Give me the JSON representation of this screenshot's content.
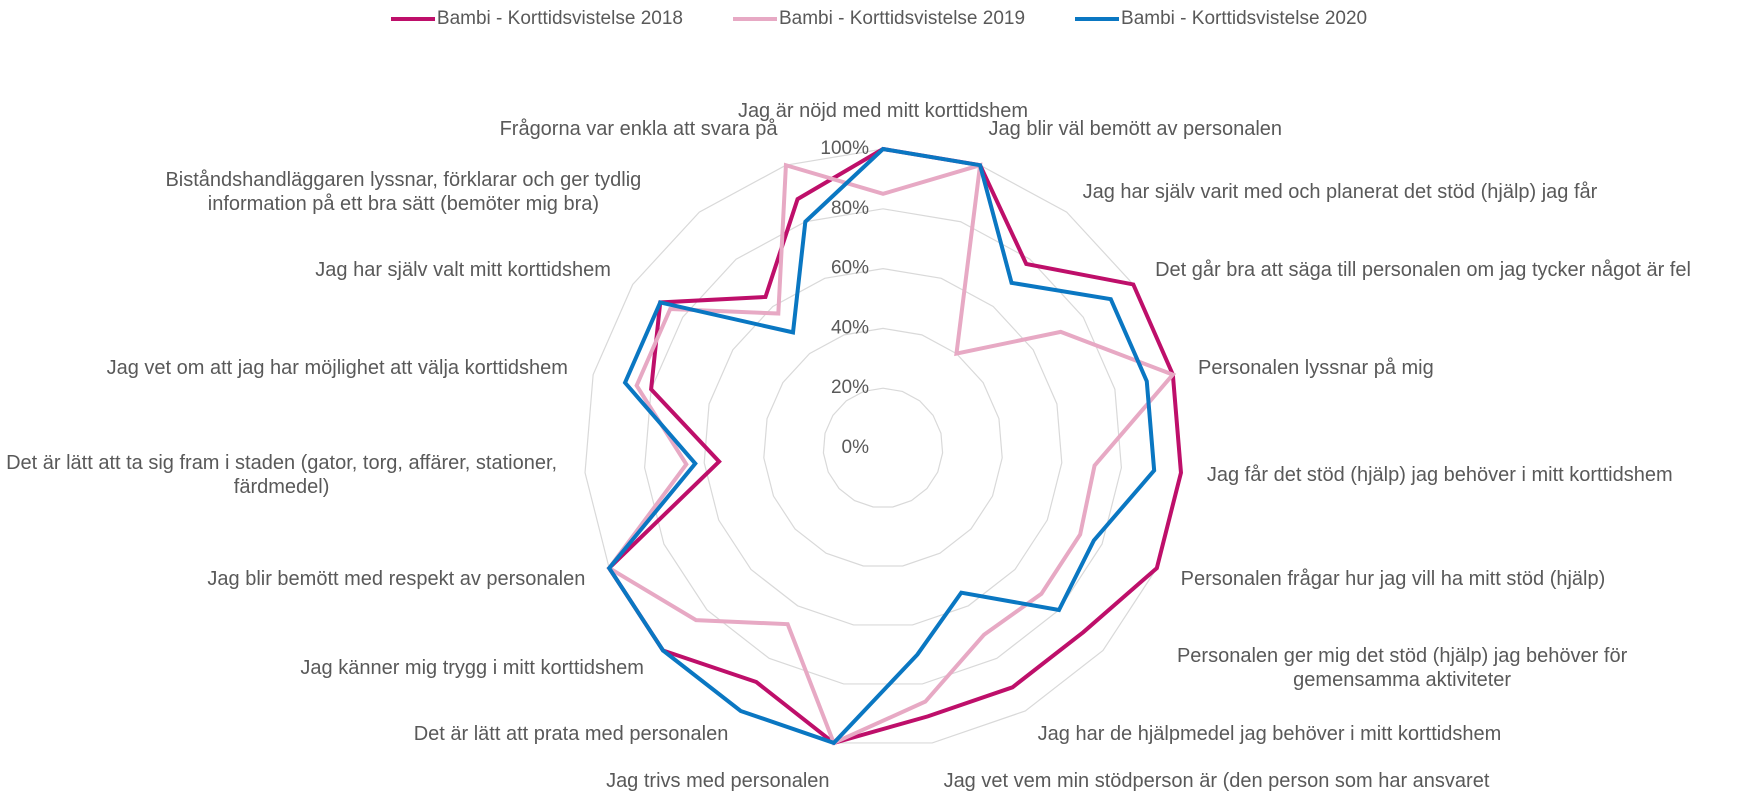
{
  "chart_data": {
    "type": "radar",
    "categories": [
      "Jag är nöjd med mitt korttidshem",
      "Jag blir väl bemött av personalen",
      "Jag har själv varit med och planerat det stöd (hjälp) jag får",
      "Det går bra att säga till personalen om jag tycker något är fel",
      "Personalen lyssnar på mig",
      "Jag får det stöd (hjälp) jag behöver i mitt korttidshem",
      "Personalen frågar hur jag vill ha mitt stöd (hjälp)",
      "Personalen ger mig det stöd (hjälp) jag behöver för gemensamma aktiviteter",
      "Jag har de hjälpmedel jag behöver i mitt korttidshem",
      "Jag vet vem min stödperson är (den person som har ansvaret för mig)",
      "Jag trivs med personalen",
      "Det är lätt att prata med personalen",
      "Jag känner mig trygg i mitt korttidshem",
      "Jag blir bemött med respekt av personalen",
      "Det är lätt att ta sig fram i staden (gator, torg, affärer, stationer, färdmedel)",
      "Jag vet om att jag har möjlighet att välja korttidshem",
      "Jag har själv valt mitt korttidshem",
      "Biståndshandläggaren lyssnar, förklarar och ger tydlig information på ett bra sätt (bemöter mig bra)",
      "Frågorna var enkla att svara på"
    ],
    "series": [
      {
        "name": "Bambi - Korttidsvistelse 2018",
        "color": "#be0f6a",
        "values": [
          100,
          100,
          78,
          100,
          100,
          100,
          100,
          91,
          91,
          91,
          100,
          89,
          100,
          100,
          55,
          80,
          89,
          64,
          88
        ]
      },
      {
        "name": "Bambi - Korttidsvistelse 2019",
        "color": "#e7a9c4",
        "values": [
          85,
          100,
          40,
          71,
          100,
          71,
          72,
          72,
          71,
          86,
          100,
          67,
          85,
          100,
          66,
          85,
          85,
          57,
          100
        ]
      },
      {
        "name": "Bambi - Korttidsvistelse 2020",
        "color": "#0a77c2",
        "values": [
          100,
          100,
          70,
          91,
          91,
          91,
          77,
          80,
          55,
          70,
          100,
          100,
          100,
          100,
          63,
          89,
          89,
          49,
          80
        ]
      }
    ],
    "ylim": [
      0,
      100
    ],
    "yticks": [
      {
        "value": 0,
        "label": "0%"
      },
      {
        "value": 20,
        "label": "20%"
      },
      {
        "value": 40,
        "label": "40%"
      },
      {
        "value": 60,
        "label": "60%"
      },
      {
        "value": 80,
        "label": "80%"
      },
      {
        "value": 100,
        "label": "100%"
      }
    ],
    "grid": true,
    "legend": "top"
  }
}
